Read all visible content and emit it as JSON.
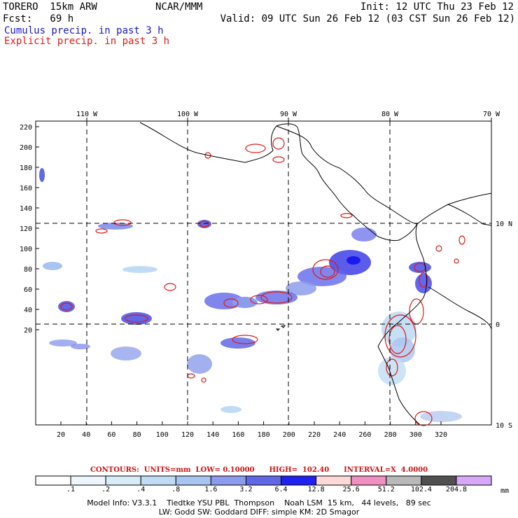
{
  "header": {
    "model": "TORERO  15km ARW",
    "org": "NCAR/MMM",
    "init": "Init: 12 UTC Thu 23 Feb 12",
    "fcst": "Fcst:   69 h",
    "valid": "Valid: 09 UTC Sun 26 Feb 12 (03 CST Sun 26 Feb 12)",
    "legend_cumulus": "Cumulus precip. in past 3 h",
    "legend_explicit": "Explicit precip. in past 3 h"
  },
  "axes": {
    "top_lon_labels": [
      "110 W",
      "100 W",
      "90 W",
      "80 W",
      "70 W"
    ],
    "right_lat_labels": [
      "10 N",
      "0",
      "10 S"
    ],
    "left_y_ticks": [
      "220",
      "200",
      "180",
      "160",
      "140",
      "120",
      "100",
      "80",
      "60",
      "40",
      "20"
    ],
    "bottom_x_ticks": [
      "20",
      "40",
      "60",
      "80",
      "100",
      "120",
      "140",
      "160",
      "180",
      "200",
      "220",
      "240",
      "260",
      "280",
      "300",
      "320"
    ]
  },
  "contours_line": "CONTOURS:  UNITS=mm  LOW= 0.10000      HIGH=  102.40      INTERVAL=X  4.0000",
  "colorbar": {
    "labels": [
      ".1",
      ".2",
      ".4",
      ".8",
      "1.6",
      "3.2",
      "6.4",
      "12.8",
      "25.6",
      "51.2",
      "102.4",
      "204.8"
    ],
    "unit": "mm",
    "colors": [
      "#ffffff",
      "#eef6fb",
      "#d8ecf8",
      "#c0dcf4",
      "#a8c4f0",
      "#8c9cec",
      "#6068e8",
      "#2020f0",
      "#ffd8d8",
      "#f090c0",
      "#b8b8b8",
      "#505050",
      "#d8a8f8"
    ]
  },
  "footer": {
    "line1": "Model Info: V3.3.1    Tiedtke YSU PBL  Thompson    Noah LSM  15 km,   44 levels,   89 sec",
    "line2": "LW: Godd SW: Goddard DIFF: simple KM: 2D Smagor"
  }
}
